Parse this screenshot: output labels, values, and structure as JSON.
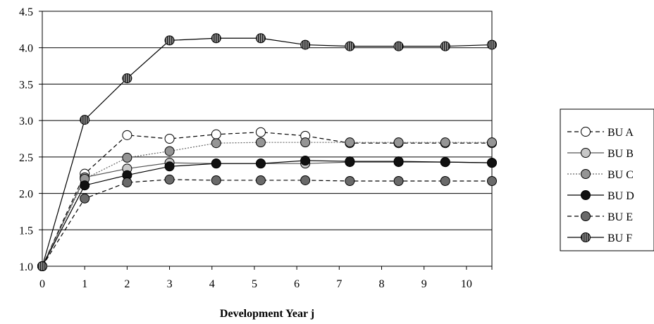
{
  "chart_data": {
    "type": "line",
    "title": "",
    "xlabel": "Development Year j",
    "ylabel": "",
    "x": [
      0,
      1,
      2,
      3,
      4,
      5,
      6,
      7,
      8,
      9,
      10
    ],
    "xlim": [
      0,
      10.6
    ],
    "ylim": [
      1.0,
      4.5
    ],
    "yticks": [
      "1.0",
      "1.5",
      "2.0",
      "2.5",
      "3.0",
      "3.5",
      "4.0",
      "4.5"
    ],
    "xticks": [
      "0",
      "1",
      "2",
      "3",
      "4",
      "5",
      "6",
      "7",
      "8",
      "9",
      "10"
    ],
    "grid": "horizontal",
    "legend_position": "right",
    "series": [
      {
        "name": "BU A",
        "x": [
          0,
          1,
          2,
          3,
          4.1,
          5.15,
          6.2,
          7.25,
          8.4,
          9.5,
          10.6
        ],
        "values": [
          1.0,
          2.27,
          2.8,
          2.75,
          2.81,
          2.84,
          2.79,
          2.69,
          2.69,
          2.69,
          2.69
        ],
        "line": "dashed",
        "marker_fill": "#ffffff",
        "line_color": "#000000"
      },
      {
        "name": "BU B",
        "x": [
          0,
          1,
          2,
          3,
          4.1,
          5.15,
          6.2,
          7.25,
          8.4,
          9.5,
          10.6
        ],
        "values": [
          1.0,
          2.22,
          2.34,
          2.42,
          2.41,
          2.41,
          2.41,
          2.43,
          2.43,
          2.43,
          2.42
        ],
        "line": "solid",
        "marker_fill": "#c8c8c8",
        "line_color": "#555555"
      },
      {
        "name": "BU C",
        "x": [
          0,
          1,
          2,
          3,
          4.1,
          5.15,
          6.2,
          7.25,
          8.4,
          9.5,
          10.6
        ],
        "values": [
          1.0,
          2.2,
          2.49,
          2.58,
          2.69,
          2.7,
          2.7,
          2.7,
          2.7,
          2.7,
          2.7
        ],
        "line": "dotted",
        "marker_fill": "#959595",
        "line_color": "#666666"
      },
      {
        "name": "BU D",
        "x": [
          0,
          1,
          2,
          3,
          4.1,
          5.15,
          6.2,
          7.25,
          8.4,
          9.5,
          10.6
        ],
        "values": [
          1.0,
          2.11,
          2.25,
          2.37,
          2.41,
          2.41,
          2.45,
          2.44,
          2.44,
          2.43,
          2.42
        ],
        "line": "solid",
        "marker_fill": "#111111",
        "line_color": "#000000"
      },
      {
        "name": "BU E",
        "x": [
          0,
          1,
          2,
          3,
          4.1,
          5.15,
          6.2,
          7.25,
          8.4,
          9.5,
          10.6
        ],
        "values": [
          1.0,
          1.93,
          2.15,
          2.19,
          2.18,
          2.18,
          2.18,
          2.17,
          2.17,
          2.17,
          2.17
        ],
        "line": "dashed",
        "marker_fill": "#6a6a6a",
        "line_color": "#000000"
      },
      {
        "name": "BU F",
        "x": [
          0,
          1,
          2,
          3,
          4.1,
          5.15,
          6.2,
          7.25,
          8.4,
          9.5,
          10.6
        ],
        "values": [
          1.0,
          3.01,
          3.58,
          4.1,
          4.13,
          4.13,
          4.04,
          4.02,
          4.02,
          4.02,
          4.04
        ],
        "line": "solid",
        "marker_fill": "#777777",
        "marker_pattern": "vertical-stripes",
        "line_color": "#000000"
      }
    ]
  }
}
